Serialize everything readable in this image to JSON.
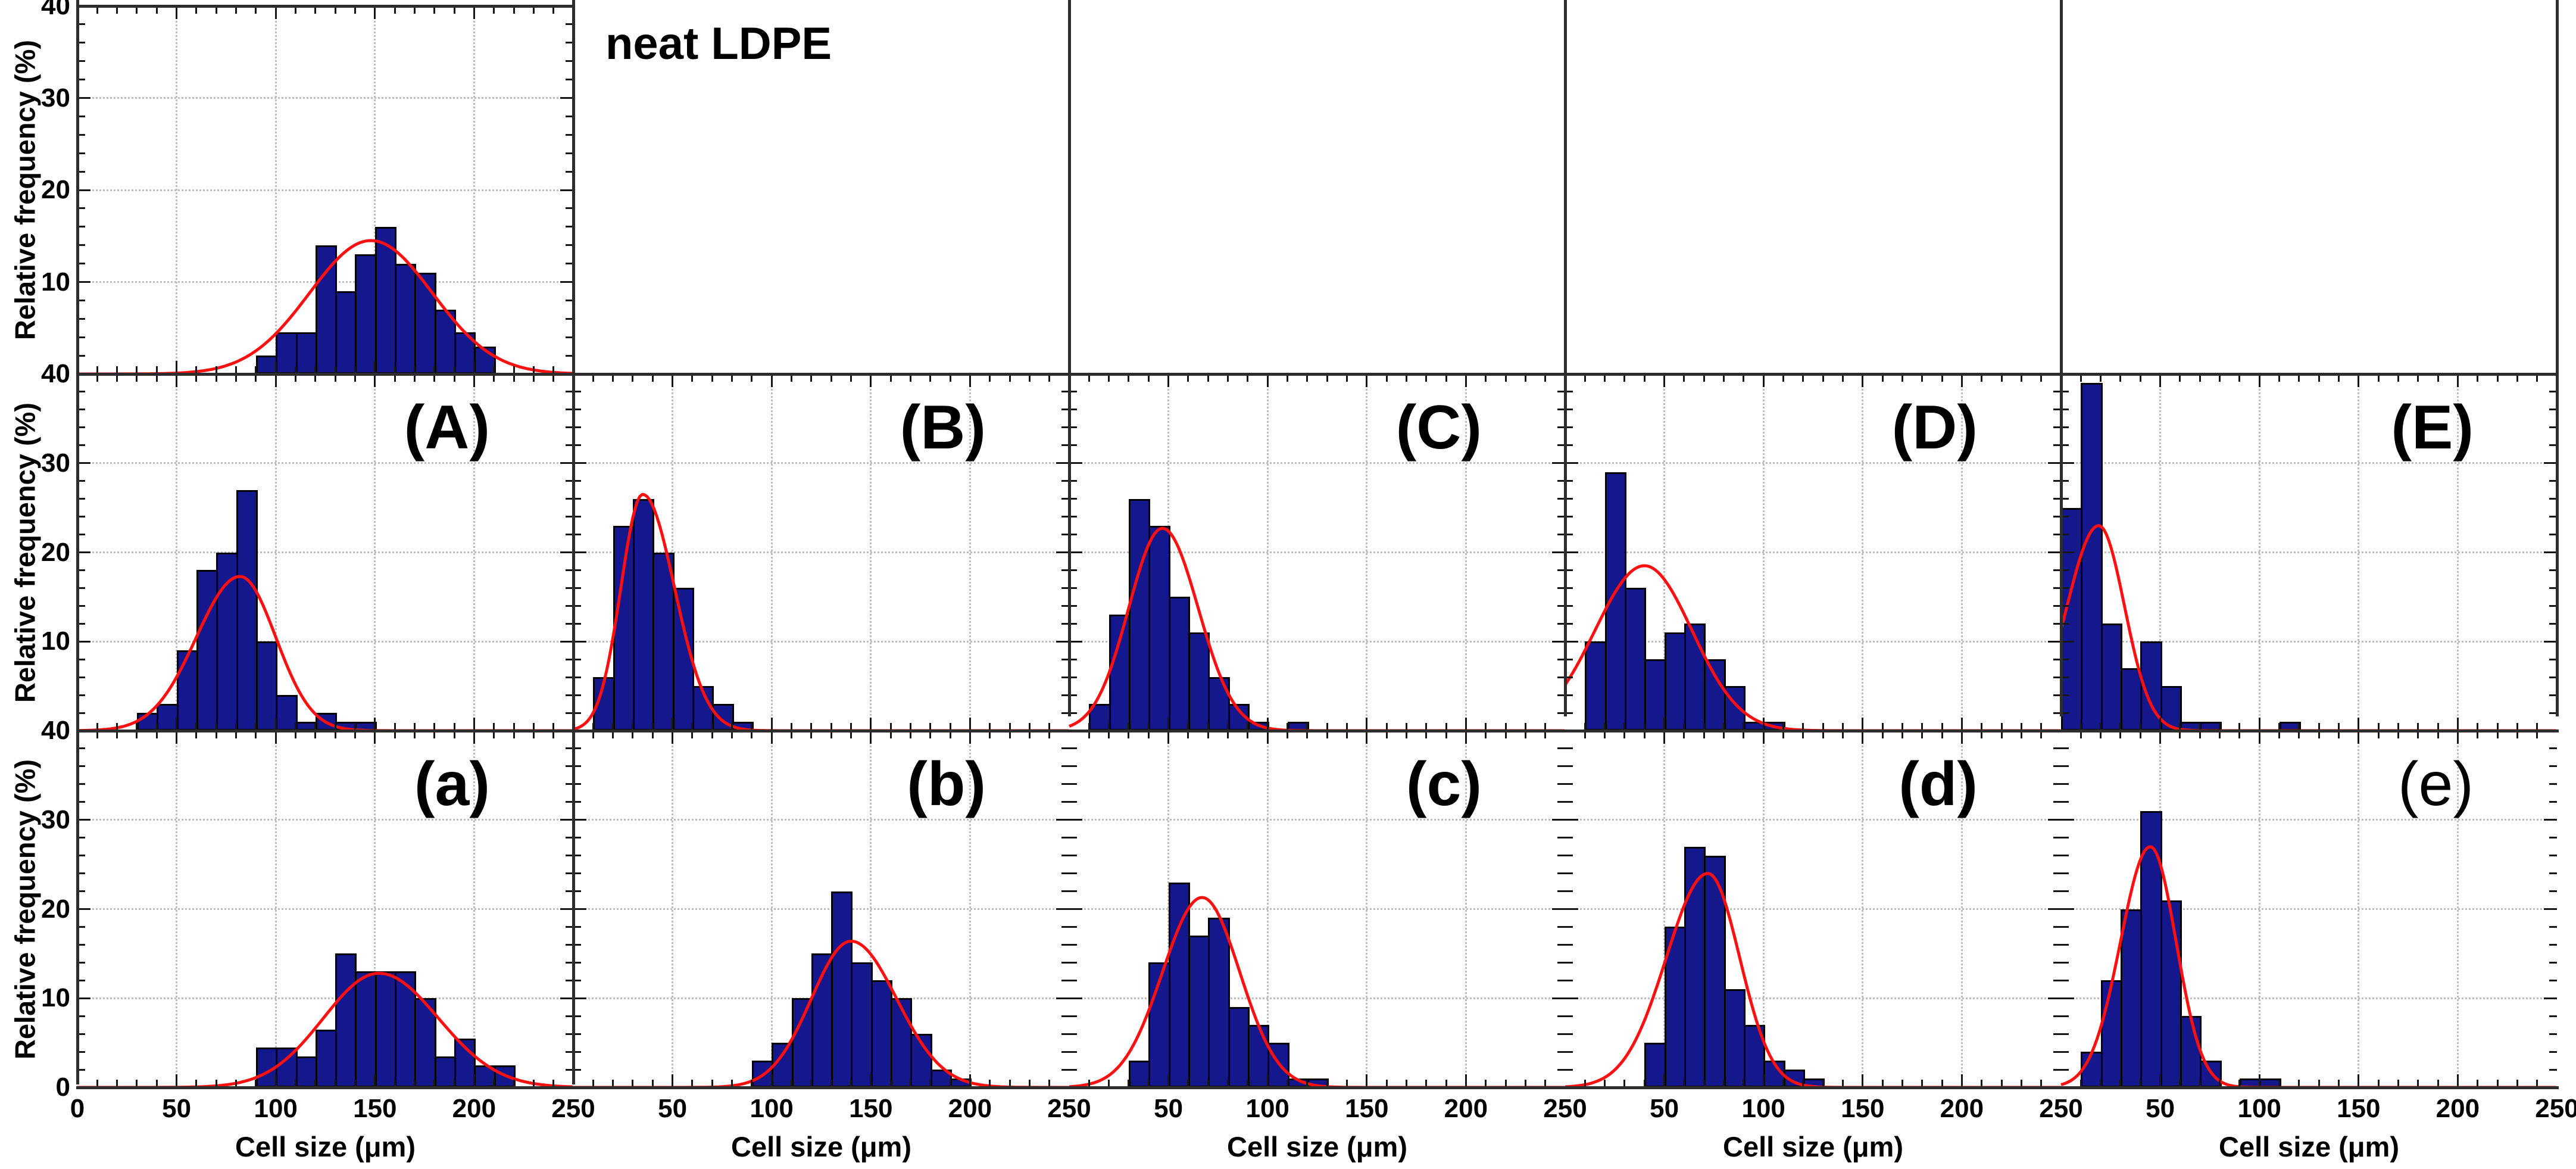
{
  "figure": {
    "y_axis_title": "Relative frequency (%)",
    "x_axis_title": "Cell size (μm)",
    "y_tick_labels": [
      40,
      30,
      20,
      10
    ],
    "y_tick_label_bottom": 0,
    "x_first_tick_label": 0,
    "x_tick_labels": [
      50,
      100,
      150,
      200,
      250
    ],
    "grid_x": [
      50,
      100,
      150,
      200
    ],
    "grid_y": [
      10,
      20,
      30
    ],
    "colors": {
      "bar_fill": "#14188c",
      "bar_outline": "#000000",
      "fit_curve": "#ff0f0f",
      "grid": "#bdbdbd",
      "frame": "#2d2d2d",
      "text": "#000000",
      "background": "#ffffff"
    }
  },
  "chart_data": [
    {
      "id": "neat-ldpe",
      "panel_label": "neat LDPE",
      "label_position": "outside-right",
      "label_font_weight": 700,
      "row": 0,
      "col": 0,
      "type": "histogram",
      "xlabel": "Cell size (μm)",
      "ylabel": "Relative frequency (%)",
      "xlim": [
        0,
        250
      ],
      "ylim": [
        0,
        40
      ],
      "bin_width": 10,
      "bin_start": 90,
      "values": [
        2,
        4.5,
        4.5,
        14,
        9,
        13,
        16,
        12,
        11,
        7,
        4.5,
        3
      ],
      "fit": {
        "type": "gaussian",
        "mean": 148,
        "peak": 14.5,
        "sd_left": 31,
        "sd_right": 31
      }
    },
    {
      "id": "A",
      "panel_label": "(A)",
      "label_position": "inside-top-right",
      "label_font_weight": 700,
      "row": 1,
      "col": 0,
      "type": "histogram",
      "xlabel": "Cell size (μm)",
      "ylabel": "Relative frequency (%)",
      "xlim": [
        0,
        250
      ],
      "ylim": [
        0,
        40
      ],
      "bin_width": 10,
      "bin_start": 30,
      "values": [
        2,
        3,
        9,
        18,
        20,
        27,
        10,
        4,
        1,
        2,
        1,
        1
      ],
      "fit": {
        "type": "gaussian",
        "mean": 82,
        "peak": 17.3,
        "sd_left": 22,
        "sd_right": 18
      }
    },
    {
      "id": "B",
      "panel_label": "(B)",
      "label_position": "inside-top-right",
      "label_font_weight": 700,
      "row": 1,
      "col": 1,
      "type": "histogram",
      "xlabel": "Cell size (μm)",
      "ylabel": "Relative frequency (%)",
      "xlim": [
        0,
        250
      ],
      "ylim": [
        0,
        40
      ],
      "bin_width": 10,
      "bin_start": 10,
      "values": [
        6,
        23,
        26,
        20,
        16,
        5,
        3,
        1
      ],
      "fit": {
        "type": "gaussian",
        "mean": 35,
        "peak": 26.5,
        "sd_left": 11,
        "sd_right": 16
      }
    },
    {
      "id": "C",
      "panel_label": "(C)",
      "label_position": "inside-top-right",
      "label_font_weight": 700,
      "row": 1,
      "col": 2,
      "type": "histogram",
      "xlabel": "Cell size (μm)",
      "ylabel": "Relative frequency (%)",
      "xlim": [
        0,
        250
      ],
      "ylim": [
        0,
        40
      ],
      "bin_width": 10,
      "bin_start": 10,
      "values": [
        3,
        13,
        26,
        23,
        15,
        11,
        6,
        3,
        1,
        0,
        1
      ],
      "fit": {
        "type": "gaussian",
        "mean": 47,
        "peak": 22.7,
        "sd_left": 17,
        "sd_right": 18
      }
    },
    {
      "id": "D",
      "panel_label": "(D)",
      "label_position": "inside-top-right",
      "label_font_weight": 700,
      "row": 1,
      "col": 3,
      "type": "histogram",
      "xlabel": "Cell size (μm)",
      "ylabel": "Relative frequency (%)",
      "xlim": [
        0,
        250
      ],
      "ylim": [
        0,
        40
      ],
      "bin_width": 10,
      "bin_start": 10,
      "values": [
        10,
        29,
        16,
        8,
        11,
        12,
        8,
        5,
        1,
        1
      ],
      "fit": {
        "type": "gaussian",
        "mean": 40,
        "peak": 18.5,
        "sd_left": 25,
        "sd_right": 24
      }
    },
    {
      "id": "E",
      "panel_label": "(E)",
      "label_position": "inside-top-right",
      "label_font_weight": 700,
      "row": 1,
      "col": 4,
      "type": "histogram",
      "xlabel": "Cell size (μm)",
      "ylabel": "Relative frequency (%)",
      "xlim": [
        0,
        250
      ],
      "ylim": [
        0,
        40
      ],
      "bin_width": 10,
      "bin_start": 0,
      "values": [
        25,
        39,
        12,
        7,
        10,
        5,
        1,
        1,
        0,
        0,
        0,
        1
      ],
      "fit": {
        "type": "gaussian",
        "mean": 19,
        "peak": 23,
        "sd_left": 16,
        "sd_right": 13
      }
    },
    {
      "id": "a",
      "panel_label": "(a)",
      "label_position": "inside-top-right",
      "label_font_weight": 700,
      "row": 2,
      "col": 0,
      "type": "histogram",
      "xlabel": "Cell size (μm)",
      "ylabel": "Relative frequency (%)",
      "xlim": [
        0,
        250
      ],
      "ylim": [
        0,
        40
      ],
      "bin_width": 10,
      "bin_start": 90,
      "values": [
        4.5,
        4.5,
        3.5,
        6.5,
        15,
        13,
        13,
        13,
        10,
        3.5,
        5.5,
        2.5,
        2.5
      ],
      "fit": {
        "type": "gaussian",
        "mean": 152,
        "peak": 12.8,
        "sd_left": 28,
        "sd_right": 30
      }
    },
    {
      "id": "b",
      "panel_label": "(b)",
      "label_position": "inside-top-right",
      "label_font_weight": 700,
      "row": 2,
      "col": 1,
      "type": "histogram",
      "xlabel": "Cell size (μm)",
      "ylabel": "Relative frequency (%)",
      "xlim": [
        0,
        250
      ],
      "ylim": [
        0,
        40
      ],
      "bin_width": 10,
      "bin_start": 90,
      "values": [
        3,
        5,
        10,
        15,
        22,
        14,
        12,
        10,
        6,
        2,
        1
      ],
      "fit": {
        "type": "gaussian",
        "mean": 140,
        "peak": 16.4,
        "sd_left": 20,
        "sd_right": 23
      }
    },
    {
      "id": "c",
      "panel_label": "(c)",
      "label_position": "inside-top-right",
      "label_font_weight": 700,
      "row": 2,
      "col": 2,
      "type": "histogram",
      "xlabel": "Cell size (μm)",
      "ylabel": "Relative frequency (%)",
      "xlim": [
        0,
        250
      ],
      "ylim": [
        0,
        40
      ],
      "bin_width": 10,
      "bin_start": 30,
      "values": [
        3,
        14,
        23,
        17,
        19,
        9,
        7,
        5,
        1,
        1
      ],
      "fit": {
        "type": "gaussian",
        "mean": 67,
        "peak": 21.3,
        "sd_left": 20,
        "sd_right": 19
      }
    },
    {
      "id": "d",
      "panel_label": "(d)",
      "label_position": "inside-top-right",
      "label_font_weight": 700,
      "row": 2,
      "col": 3,
      "type": "histogram",
      "xlabel": "Cell size (μm)",
      "ylabel": "Relative frequency (%)",
      "xlim": [
        0,
        250
      ],
      "ylim": [
        0,
        40
      ],
      "bin_width": 10,
      "bin_start": 40,
      "values": [
        5,
        18,
        27,
        26,
        11,
        7,
        3,
        2,
        1
      ],
      "fit": {
        "type": "gaussian",
        "mean": 72,
        "peak": 24,
        "sd_left": 21,
        "sd_right": 16
      }
    },
    {
      "id": "e",
      "panel_label": "(e)",
      "label_position": "inside-top-right",
      "label_font_weight": 400,
      "row": 2,
      "col": 4,
      "type": "histogram",
      "xlabel": "Cell size (μm)",
      "ylabel": "Relative frequency (%)",
      "xlim": [
        0,
        250
      ],
      "ylim": [
        0,
        40
      ],
      "bin_width": 10,
      "bin_start": 10,
      "values": [
        4,
        12,
        20,
        31,
        21,
        8,
        3,
        0,
        1,
        1
      ],
      "fit": {
        "type": "gaussian",
        "mean": 45,
        "peak": 27,
        "sd_left": 15,
        "sd_right": 13
      }
    }
  ]
}
